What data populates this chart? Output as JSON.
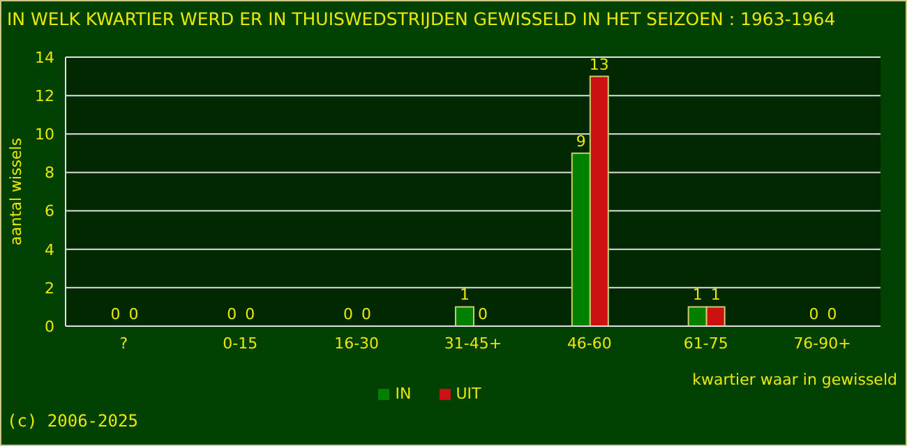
{
  "chart_data": {
    "type": "bar",
    "title": "IN WELK KWARTIER WERD ER IN THUISWEDSTRIJDEN GEWISSELD IN HET SEIZOEN : 1963-1964",
    "xlabel": "kwartier waar in gewisseld",
    "ylabel": "aantal wissels",
    "annotations": [
      "(c) 2006-2025"
    ],
    "categories": [
      "?",
      "0-15",
      "16-30",
      "31-45+",
      "46-60",
      "61-75",
      "76-90+"
    ],
    "series": [
      {
        "name": "IN",
        "color": "#008000",
        "values": [
          0,
          0,
          0,
          1,
          9,
          1,
          0
        ]
      },
      {
        "name": "UIT",
        "color": "#cc1111",
        "values": [
          0,
          0,
          0,
          0,
          13,
          1,
          0
        ]
      }
    ],
    "ylim": [
      0,
      14
    ],
    "yticks": [
      0,
      2,
      4,
      6,
      8,
      10,
      12,
      14
    ],
    "grid": "y",
    "legend": "bottom",
    "data_labels": true
  }
}
